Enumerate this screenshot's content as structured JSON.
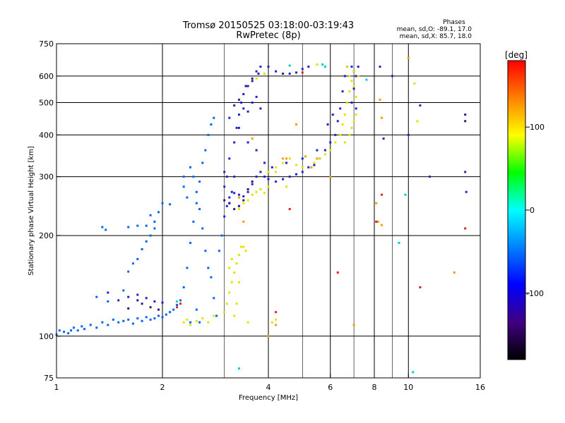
{
  "chart_data": {
    "type": "scatter",
    "title": "Tromsø 20150525 03:18:00-03:19:43",
    "subtitle": "RwPretec (8p)",
    "xlabel": "Frequency [MHz]",
    "ylabel": "Stationary phase Virtual Height [km]",
    "xscale": "log",
    "yscale": "log",
    "xlim": [
      1,
      16
    ],
    "ylim": [
      75,
      750
    ],
    "x_ticks": [
      1,
      2,
      4,
      6,
      8,
      10,
      16
    ],
    "x_minor_gridlines": [
      3,
      5,
      7,
      9
    ],
    "y_ticks": [
      75,
      100,
      200,
      300,
      400,
      500,
      600,
      750
    ],
    "grid": true,
    "legend": {
      "title": "Phases",
      "lines": [
        "mean, sd,O: -89.1, 17.0",
        "mean, sd,X: 85.7, 18.0"
      ],
      "placement": "top-right"
    },
    "colorbar": {
      "label": "[deg]",
      "range": [
        -180,
        180
      ],
      "ticks": [
        100,
        0,
        -100
      ],
      "colors": [
        "#ff0000",
        "#ff8000",
        "#ffff00",
        "#00ff00",
        "#00ffff",
        "#0080ff",
        "#0000ff",
        "#400080",
        "#000000"
      ]
    },
    "series": [
      {
        "mode": "O",
        "color": "#0066ee",
        "points": [
          [
            1.0,
            101
          ],
          [
            1.02,
            104
          ],
          [
            1.05,
            103
          ],
          [
            1.08,
            102
          ],
          [
            1.1,
            104
          ],
          [
            1.12,
            106
          ],
          [
            1.15,
            104
          ],
          [
            1.18,
            107
          ],
          [
            1.2,
            105
          ],
          [
            1.25,
            108
          ],
          [
            1.3,
            106
          ],
          [
            1.35,
            110
          ],
          [
            1.4,
            108
          ],
          [
            1.45,
            112
          ],
          [
            1.5,
            110
          ],
          [
            1.55,
            111
          ],
          [
            1.6,
            112
          ],
          [
            1.65,
            109
          ],
          [
            1.7,
            113
          ],
          [
            1.75,
            111
          ],
          [
            1.8,
            114
          ],
          [
            1.85,
            112
          ],
          [
            1.9,
            113
          ],
          [
            1.95,
            115
          ],
          [
            2.0,
            114
          ],
          [
            2.05,
            116
          ],
          [
            2.1,
            118
          ],
          [
            2.15,
            120
          ],
          [
            2.2,
            124
          ],
          [
            2.25,
            128
          ],
          [
            1.3,
            131
          ],
          [
            1.4,
            127
          ],
          [
            1.55,
            137
          ],
          [
            1.6,
            156
          ],
          [
            1.65,
            165
          ],
          [
            1.7,
            170
          ],
          [
            1.75,
            182
          ],
          [
            1.8,
            192
          ],
          [
            1.85,
            200
          ],
          [
            1.9,
            210
          ],
          [
            1.95,
            235
          ],
          [
            2.0,
            250
          ],
          [
            2.1,
            248
          ],
          [
            1.85,
            230
          ],
          [
            1.9,
            220
          ],
          [
            1.8,
            214
          ],
          [
            1.7,
            214
          ],
          [
            1.6,
            212
          ],
          [
            1.35,
            212
          ],
          [
            1.38,
            208
          ],
          [
            2.3,
            140
          ],
          [
            2.35,
            160
          ],
          [
            2.4,
            190
          ],
          [
            2.45,
            220
          ],
          [
            2.5,
            250
          ],
          [
            2.55,
            290
          ],
          [
            2.6,
            330
          ],
          [
            2.65,
            360
          ],
          [
            2.7,
            400
          ],
          [
            2.75,
            430
          ],
          [
            2.8,
            450
          ],
          [
            2.4,
            320
          ],
          [
            2.45,
            300
          ],
          [
            2.5,
            270
          ],
          [
            2.55,
            240
          ],
          [
            2.6,
            210
          ],
          [
            2.65,
            180
          ],
          [
            2.7,
            160
          ],
          [
            2.75,
            150
          ],
          [
            2.8,
            130
          ],
          [
            2.85,
            115
          ],
          [
            2.5,
            120
          ],
          [
            2.55,
            110
          ],
          [
            2.4,
            110
          ],
          [
            2.9,
            180
          ],
          [
            2.95,
            200
          ],
          [
            2.35,
            260
          ],
          [
            2.3,
            280
          ],
          [
            2.3,
            300
          ]
        ]
      },
      {
        "mode": "O",
        "color": "#2222cc",
        "points": [
          [
            1.4,
            135
          ],
          [
            1.5,
            128
          ],
          [
            1.6,
            131
          ],
          [
            1.7,
            133
          ],
          [
            1.8,
            130
          ],
          [
            1.9,
            127
          ],
          [
            2.0,
            126
          ],
          [
            3.0,
            228
          ],
          [
            3.05,
            245
          ],
          [
            3.1,
            260
          ],
          [
            3.15,
            270
          ],
          [
            3.2,
            268
          ],
          [
            3.3,
            265
          ],
          [
            3.4,
            262
          ],
          [
            3.5,
            270
          ],
          [
            3.6,
            285
          ],
          [
            3.7,
            300
          ],
          [
            3.8,
            310
          ],
          [
            3.9,
            300
          ],
          [
            4.0,
            295
          ],
          [
            4.2,
            290
          ],
          [
            4.4,
            295
          ],
          [
            4.6,
            300
          ],
          [
            4.8,
            305
          ],
          [
            5.0,
            310
          ],
          [
            5.2,
            320
          ],
          [
            5.4,
            325
          ],
          [
            5.6,
            340
          ],
          [
            5.8,
            360
          ],
          [
            6.0,
            380
          ],
          [
            6.2,
            400
          ],
          [
            6.3,
            440
          ],
          [
            6.4,
            480
          ],
          [
            6.5,
            540
          ],
          [
            6.6,
            600
          ],
          [
            6.7,
            640
          ],
          [
            3.0,
            310
          ],
          [
            3.1,
            340
          ],
          [
            3.2,
            380
          ],
          [
            3.25,
            420
          ],
          [
            3.3,
            460
          ],
          [
            3.35,
            500
          ],
          [
            3.4,
            530
          ],
          [
            3.5,
            560
          ],
          [
            3.6,
            590
          ],
          [
            3.7,
            620
          ],
          [
            3.8,
            640
          ],
          [
            4.0,
            640
          ],
          [
            4.2,
            620
          ],
          [
            4.4,
            610
          ],
          [
            4.6,
            610
          ],
          [
            4.8,
            615
          ],
          [
            5.0,
            630
          ],
          [
            5.2,
            640
          ],
          [
            3.2,
            490
          ],
          [
            3.3,
            510
          ],
          [
            3.4,
            480
          ],
          [
            3.5,
            470
          ],
          [
            3.6,
            500
          ],
          [
            3.7,
            520
          ],
          [
            3.8,
            480
          ],
          [
            3.1,
            450
          ],
          [
            3.3,
            420
          ],
          [
            3.5,
            380
          ],
          [
            3.7,
            360
          ],
          [
            3.9,
            330
          ],
          [
            4.1,
            320
          ],
          [
            4.5,
            330
          ],
          [
            5.0,
            340
          ],
          [
            5.5,
            360
          ],
          [
            5.9,
            430
          ],
          [
            6.1,
            460
          ],
          [
            6.9,
            640
          ],
          [
            7.0,
            620
          ],
          [
            7.1,
            600
          ],
          [
            7.0,
            550
          ],
          [
            6.9,
            500
          ],
          [
            7.2,
            640
          ],
          [
            7.1,
            480
          ],
          [
            8.3,
            640
          ],
          [
            8.5,
            390
          ],
          [
            9.0,
            600
          ],
          [
            10.0,
            400
          ],
          [
            10.8,
            490
          ],
          [
            11.5,
            300
          ],
          [
            14.5,
            310
          ],
          [
            14.6,
            270
          ],
          [
            3.0,
            280
          ],
          [
            3.05,
            300
          ],
          [
            3.1,
            250
          ],
          [
            3.2,
            300
          ]
        ]
      },
      {
        "mode": "O",
        "color": "#301880",
        "points": [
          [
            1.6,
            121
          ],
          [
            1.7,
            128
          ],
          [
            1.75,
            125
          ],
          [
            1.85,
            122
          ],
          [
            1.95,
            120
          ],
          [
            3.0,
            255
          ],
          [
            3.1,
            250
          ],
          [
            3.2,
            240
          ],
          [
            3.3,
            245
          ],
          [
            3.4,
            255
          ],
          [
            3.5,
            275
          ],
          [
            3.6,
            290
          ],
          [
            3.45,
            560
          ],
          [
            3.6,
            580
          ],
          [
            3.75,
            610
          ],
          [
            14.5,
            440
          ],
          [
            14.5,
            460
          ]
        ]
      },
      {
        "mode": "X",
        "color": "#e8e000",
        "points": [
          [
            2.3,
            110
          ],
          [
            2.35,
            112
          ],
          [
            2.4,
            108
          ],
          [
            2.5,
            111
          ],
          [
            2.6,
            113
          ],
          [
            2.7,
            110
          ],
          [
            2.8,
            115
          ],
          [
            3.0,
            118
          ],
          [
            3.05,
            125
          ],
          [
            3.1,
            135
          ],
          [
            3.15,
            145
          ],
          [
            3.2,
            155
          ],
          [
            3.25,
            165
          ],
          [
            3.3,
            175
          ],
          [
            3.35,
            185
          ],
          [
            3.1,
            160
          ],
          [
            3.15,
            170
          ],
          [
            3.3,
            145
          ],
          [
            3.2,
            115
          ],
          [
            3.25,
            125
          ],
          [
            3.4,
            185
          ],
          [
            3.45,
            180
          ],
          [
            3.3,
            240
          ],
          [
            3.4,
            250
          ],
          [
            3.5,
            255
          ],
          [
            3.6,
            265
          ],
          [
            3.7,
            270
          ],
          [
            3.8,
            275
          ],
          [
            3.9,
            268
          ],
          [
            4.0,
            280
          ],
          [
            4.2,
            320
          ],
          [
            4.4,
            330
          ],
          [
            4.6,
            340
          ],
          [
            4.8,
            325
          ],
          [
            5.0,
            320
          ],
          [
            4.0,
            310
          ],
          [
            4.2,
            310
          ],
          [
            5.4,
            330
          ],
          [
            5.6,
            340
          ],
          [
            5.8,
            350
          ],
          [
            6.0,
            360
          ],
          [
            6.2,
            380
          ],
          [
            6.4,
            400
          ],
          [
            6.5,
            430
          ],
          [
            6.6,
            460
          ],
          [
            6.7,
            500
          ],
          [
            6.8,
            540
          ],
          [
            6.9,
            580
          ],
          [
            7.0,
            620
          ],
          [
            6.7,
            640
          ],
          [
            6.8,
            600
          ],
          [
            7.0,
            560
          ],
          [
            7.1,
            520
          ],
          [
            7.1,
            460
          ],
          [
            7.0,
            440
          ],
          [
            6.9,
            420
          ],
          [
            6.8,
            400
          ],
          [
            6.6,
            380
          ],
          [
            7.2,
            600
          ],
          [
            3.7,
            590
          ],
          [
            3.9,
            610
          ],
          [
            5.5,
            650
          ],
          [
            5.8,
            640
          ],
          [
            4.5,
            280
          ],
          [
            3.5,
            110
          ],
          [
            4.1,
            110
          ],
          [
            4.2,
            112
          ],
          [
            10.4,
            570
          ],
          [
            10.6,
            440
          ]
        ]
      },
      {
        "mode": "X",
        "color": "#f0a000",
        "points": [
          [
            4.0,
            100
          ],
          [
            4.2,
            108
          ],
          [
            4.4,
            340
          ],
          [
            4.8,
            430
          ],
          [
            5.1,
            345
          ],
          [
            5.3,
            320
          ],
          [
            5.5,
            340
          ],
          [
            6.0,
            300
          ],
          [
            7.0,
            108
          ],
          [
            8.1,
            250
          ],
          [
            8.3,
            510
          ],
          [
            8.4,
            450
          ],
          [
            8.2,
            220
          ],
          [
            8.4,
            215
          ],
          [
            10.0,
            680
          ],
          [
            3.6,
            390
          ],
          [
            4.5,
            340
          ],
          [
            13.5,
            155
          ],
          [
            3.4,
            220
          ],
          [
            3.3,
            260
          ]
        ]
      },
      {
        "mode": "X",
        "color": "#e02020",
        "points": [
          [
            2.2,
            122
          ],
          [
            2.25,
            125
          ],
          [
            4.2,
            118
          ],
          [
            4.6,
            240
          ],
          [
            6.3,
            155
          ],
          [
            8.4,
            265
          ],
          [
            8.1,
            220
          ],
          [
            10.8,
            140
          ],
          [
            14.5,
            210
          ],
          [
            5.0,
            615
          ]
        ]
      },
      {
        "mode": "X",
        "color": "#00cccc",
        "points": [
          [
            3.3,
            80
          ],
          [
            5.7,
            650
          ],
          [
            5.8,
            640
          ],
          [
            9.4,
            190
          ],
          [
            9.8,
            265
          ],
          [
            10.3,
            78
          ],
          [
            7.6,
            585
          ],
          [
            4.6,
            645
          ],
          [
            2.2,
            127
          ]
        ]
      }
    ]
  }
}
